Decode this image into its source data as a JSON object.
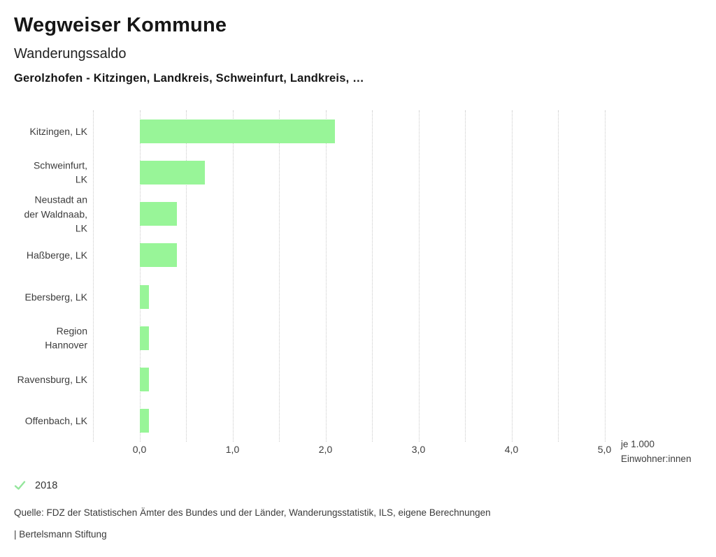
{
  "header": {
    "title": "Wegweiser Kommune",
    "subtitle": "Wanderungssaldo",
    "series_title": "Gerolzhofen - Kitzingen, Landkreis, Schweinfurt, Landkreis, …"
  },
  "chart_data": {
    "type": "bar",
    "orientation": "horizontal",
    "title": "Wanderungssaldo",
    "categories": [
      "Kitzingen, LK",
      "Schweinfurt, LK",
      "Neustadt an der Waldnaab, LK",
      "Haßberge, LK",
      "Ebersberg, LK",
      "Region Hannover",
      "Ravensburg, LK",
      "Offenbach, LK"
    ],
    "category_label_lines": [
      [
        "Kitzingen, LK"
      ],
      [
        "Schweinfurt,",
        "LK"
      ],
      [
        "Neustadt an",
        "der Waldnaab,",
        "LK"
      ],
      [
        "Haßberge, LK"
      ],
      [
        "Ebersberg, LK"
      ],
      [
        "Region",
        "Hannover"
      ],
      [
        "Ravensburg, LK"
      ],
      [
        "Offenbach, LK"
      ]
    ],
    "series": [
      {
        "name": "2018",
        "values": [
          2.1,
          0.7,
          0.4,
          0.4,
          0.1,
          0.1,
          0.1,
          0.1
        ]
      }
    ],
    "xlabel": "je 1.000 Einwohner:innen",
    "unit_label_lines": [
      "je 1.000",
      "Einwohner:innen"
    ],
    "xlim": [
      -0.5,
      5.0
    ],
    "x_ticks": [
      0,
      1,
      2,
      3,
      4,
      5
    ],
    "x_tick_labels": [
      "0,0",
      "1,0",
      "2,0",
      "3,0",
      "4,0",
      "5,0"
    ],
    "grid": true,
    "grid_step": 0.5,
    "legend_position": "bottom",
    "colors": {
      "bar": "#98f598",
      "grid": "#c9c9c9",
      "check_icon": "#94e69c"
    }
  },
  "legend": {
    "year_label": "2018"
  },
  "footer": {
    "source": "Quelle: FDZ der Statistischen Ämter des Bundes und der Länder, Wanderungsstatistik, ILS, eigene Berechnungen",
    "attribution": "| Bertelsmann Stiftung"
  }
}
